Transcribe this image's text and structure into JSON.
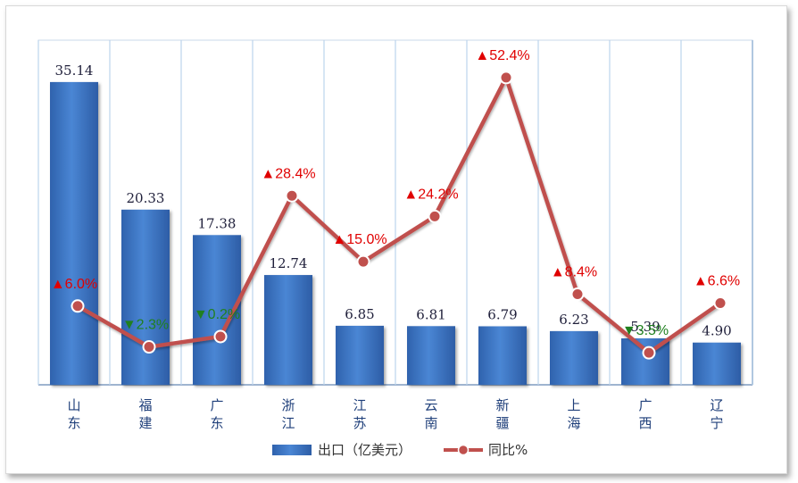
{
  "chart_data": {
    "type": "bar",
    "categories": [
      [
        "山",
        "东"
      ],
      [
        "福",
        "建"
      ],
      [
        "广",
        "东"
      ],
      [
        "浙",
        "江"
      ],
      [
        "江",
        "苏"
      ],
      [
        "云",
        "南"
      ],
      [
        "新",
        "疆"
      ],
      [
        "上",
        "海"
      ],
      [
        "广",
        "西"
      ],
      [
        "辽",
        "宁"
      ]
    ],
    "series": [
      {
        "name": "出口（亿美元）",
        "kind": "bar",
        "values": [
          35.14,
          20.33,
          17.38,
          12.74,
          6.85,
          6.81,
          6.79,
          6.23,
          5.39,
          4.9
        ],
        "labels": [
          "35.14",
          "20.33",
          "17.38",
          "12.74",
          "6.85",
          "6.81",
          "6.79",
          "6.23",
          "5.39",
          "4.90"
        ]
      },
      {
        "name": "同比%",
        "kind": "line",
        "values": [
          6.0,
          -2.3,
          -0.2,
          28.4,
          15.0,
          24.2,
          52.4,
          8.4,
          -3.5,
          6.6
        ],
        "labels": [
          "▲6.0%",
          "▼2.3%",
          "▼0.2%",
          "▲28.4%",
          "▲15.0%",
          "▲24.2%",
          "▲52.4%",
          "▲8.4%",
          "▼3.5%",
          "▲6.6%"
        ]
      }
    ],
    "ylim_bar": [
      0,
      40
    ],
    "ylim_line": [
      -10,
      60
    ],
    "grid": "vertical",
    "legend_position": "bottom-center",
    "colors": {
      "bar": "#3f76c3",
      "line": "#c0504d",
      "up": "#e00000",
      "down": "#208020",
      "grid": "#bcd4ec"
    }
  }
}
